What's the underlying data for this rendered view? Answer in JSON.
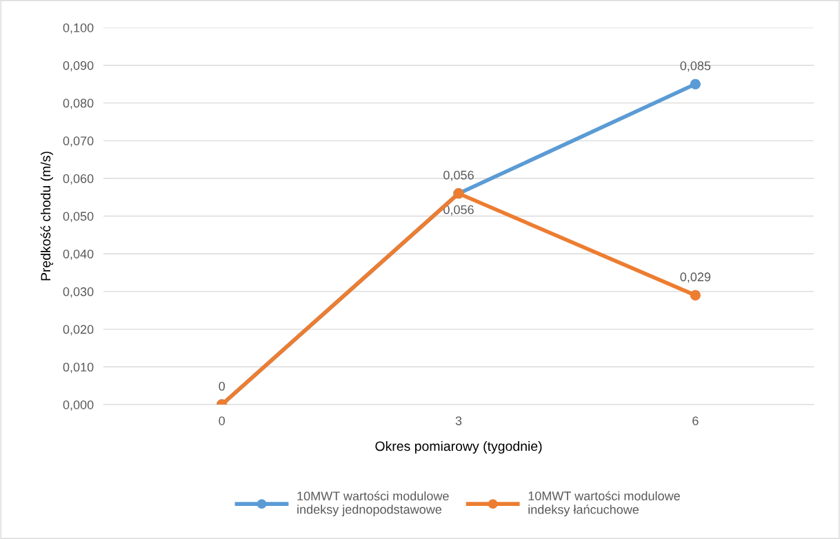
{
  "chart_data": {
    "type": "line",
    "xlabel": "Okres pomiarowy (tygodnie)",
    "ylabel": "Prędkość chodu (m/s)",
    "categories": [
      "0",
      "3",
      "6"
    ],
    "series": [
      {
        "name": "10MWT wartości modulowe\nindeksy jednopodstawowe",
        "color": "#5b9bd5",
        "values": [
          0,
          0.056,
          0.085
        ],
        "value_labels": [
          null,
          "0,056",
          "0,085"
        ]
      },
      {
        "name": "10MWT wartości modulowe\nindeksy łańcuchowe",
        "color": "#ed7d31",
        "values": [
          0,
          0.056,
          0.029
        ],
        "value_labels": [
          "0",
          "0,056",
          "0,029"
        ]
      }
    ],
    "ylim": [
      0,
      0.1
    ],
    "yticks": [
      {
        "value": 0,
        "label": "0,000"
      },
      {
        "value": 0.01,
        "label": "0,010"
      },
      {
        "value": 0.02,
        "label": "0,020"
      },
      {
        "value": 0.03,
        "label": "0,030"
      },
      {
        "value": 0.04,
        "label": "0,040"
      },
      {
        "value": 0.05,
        "label": "0,050"
      },
      {
        "value": 0.06,
        "label": "0,060"
      },
      {
        "value": 0.07,
        "label": "0,070"
      },
      {
        "value": 0.08,
        "label": "0,080"
      },
      {
        "value": 0.09,
        "label": "0,090"
      },
      {
        "value": 0.1,
        "label": "0,100"
      }
    ],
    "grid": "y",
    "legend": "bottom",
    "marker": "circle",
    "line_style": "solid"
  }
}
